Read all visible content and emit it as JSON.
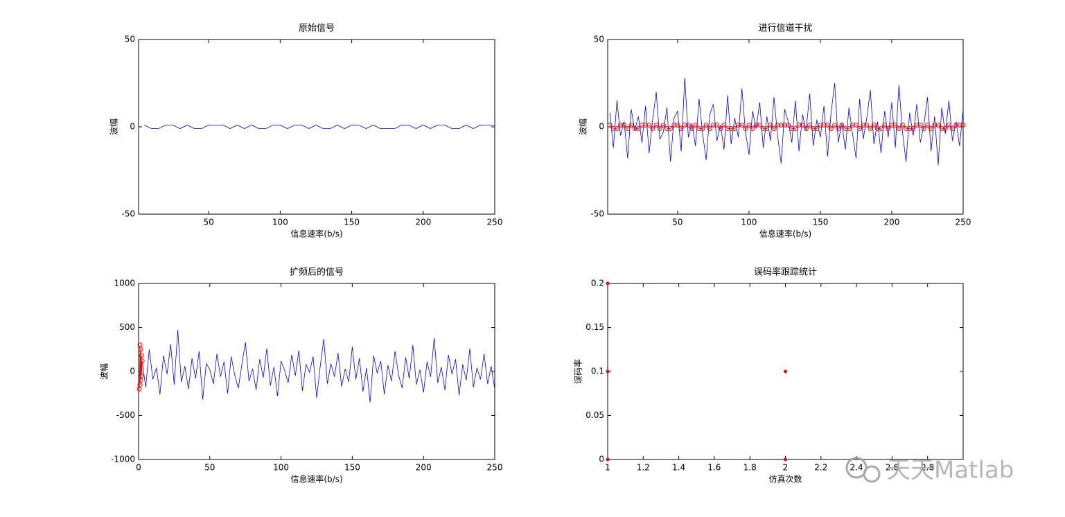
{
  "chart_data": [
    {
      "type": "line",
      "title": "原始信号",
      "xlabel": "信息速率(b/s)",
      "ylabel": "波幅",
      "xlim": [
        1,
        250
      ],
      "xticks": [
        50,
        100,
        150,
        200,
        250
      ],
      "ylim": [
        -50,
        50
      ],
      "yticks": [
        -50,
        0,
        50
      ],
      "x": [
        5,
        10,
        15,
        20,
        25,
        30,
        35,
        40,
        45,
        50,
        55,
        60,
        65,
        70,
        75,
        80,
        85,
        90,
        95,
        100,
        105,
        110,
        115,
        120,
        125,
        130,
        135,
        140,
        145,
        150,
        155,
        160,
        165,
        170,
        175,
        180,
        185,
        190,
        195,
        200,
        205,
        210,
        215,
        220,
        225,
        230,
        235,
        240,
        245,
        250
      ],
      "series": [
        {
          "color": "#0000ff",
          "values": [
            1,
            -1,
            -1,
            1,
            1,
            -1,
            1,
            -1,
            -1,
            1,
            1,
            1,
            -1,
            1,
            -1,
            1,
            -1,
            -1,
            1,
            1,
            -1,
            1,
            1,
            -1,
            1,
            -1,
            -1,
            1,
            -1,
            1,
            1,
            -1,
            1,
            -1,
            -1,
            -1,
            1,
            1,
            -1,
            1,
            -1,
            1,
            1,
            -1,
            -1,
            1,
            -1,
            1,
            1,
            1
          ]
        }
      ]
    },
    {
      "type": "line",
      "title": "进行信道干扰",
      "xlabel": "信息速率(b/s)",
      "ylabel": "波幅",
      "xlim": [
        1,
        250
      ],
      "xticks": [
        50,
        100,
        150,
        200,
        250
      ],
      "ylim": [
        -50,
        50
      ],
      "yticks": [
        -50,
        0,
        50
      ],
      "x": [
        2.5,
        5,
        7.5,
        10,
        12.5,
        15,
        17.5,
        20,
        22.5,
        25,
        27.5,
        30,
        32.5,
        35,
        37.5,
        40,
        42.5,
        45,
        47.5,
        50,
        52.5,
        55,
        57.5,
        60,
        62.5,
        65,
        67.5,
        70,
        72.5,
        75,
        77.5,
        80,
        82.5,
        85,
        87.5,
        90,
        92.5,
        95,
        97.5,
        100,
        102.5,
        105,
        107.5,
        110,
        112.5,
        115,
        117.5,
        120,
        122.5,
        125,
        127.5,
        130,
        132.5,
        135,
        137.5,
        140,
        142.5,
        145,
        147.5,
        150,
        152.5,
        155,
        157.5,
        160,
        162.5,
        165,
        167.5,
        170,
        172.5,
        175,
        177.5,
        180,
        182.5,
        185,
        187.5,
        190,
        192.5,
        195,
        197.5,
        200,
        202.5,
        205,
        207.5,
        210,
        212.5,
        215,
        217.5,
        220,
        222.5,
        225,
        227.5,
        230,
        232.5,
        235,
        237.5,
        240,
        242.5,
        245,
        247.5,
        250
      ],
      "series": [
        {
          "color": "#0000ff",
          "values": [
            8,
            -12,
            15,
            -5,
            3,
            -18,
            10,
            -2,
            6,
            -9,
            12,
            -15,
            4,
            20,
            -7,
            -3,
            11,
            -20,
            5,
            9,
            -14,
            28,
            -6,
            2,
            -11,
            16,
            -4,
            -19,
            7,
            13,
            -8,
            1,
            -13,
            18,
            -10,
            5,
            -6,
            22,
            -3,
            -16,
            9,
            -1,
            14,
            -12,
            6,
            -8,
            17,
            -5,
            -21,
            10,
            3,
            -9,
            15,
            -14,
            7,
            -2,
            19,
            -11,
            4,
            -6,
            12,
            -17,
            8,
            25,
            -9,
            2,
            -13,
            11,
            -4,
            -18,
            16,
            -7,
            5,
            21,
            -10,
            3,
            -15,
            9,
            -6,
            14,
            -12,
            24,
            -3,
            -20,
            8,
            -5,
            13,
            -9,
            1,
            17,
            -14,
            6,
            -22,
            11,
            -4,
            15,
            -8,
            3,
            -11,
            10
          ]
        },
        {
          "color": "#ff0000",
          "marker": "o",
          "values": [
            1,
            -1,
            -1,
            1,
            1,
            -1,
            1,
            -1,
            -1,
            1,
            1,
            1,
            -1,
            1,
            -1,
            1,
            -1,
            -1,
            1,
            1,
            -1,
            1,
            1,
            -1,
            1,
            -1,
            -1,
            1,
            -1,
            1,
            1,
            -1,
            1,
            -1,
            -1,
            -1,
            1,
            1,
            -1,
            1,
            -1,
            1,
            1,
            -1,
            -1,
            1,
            -1,
            1,
            1,
            1,
            1,
            -1,
            -1,
            1,
            1,
            -1,
            1,
            -1,
            -1,
            1,
            1,
            1,
            -1,
            1,
            -1,
            1,
            -1,
            -1,
            1,
            1,
            -1,
            1,
            1,
            -1,
            1,
            -1,
            -1,
            1,
            -1,
            1,
            1,
            -1,
            1,
            -1,
            -1,
            -1,
            1,
            1,
            -1,
            1,
            -1,
            1,
            1,
            -1,
            -1,
            1,
            -1,
            1,
            1,
            1
          ]
        }
      ]
    },
    {
      "type": "line",
      "title": "扩频后的信号",
      "xlabel": "信息速率(b/s)",
      "ylabel": "波幅",
      "xlim": [
        0,
        250
      ],
      "xticks": [
        0,
        50,
        100,
        150,
        200,
        250
      ],
      "ylim": [
        -1000,
        1000
      ],
      "yticks": [
        -1000,
        -500,
        0,
        500,
        1000
      ],
      "x": [
        2.5,
        5,
        7.5,
        10,
        12.5,
        15,
        17.5,
        20,
        22.5,
        25,
        27.5,
        30,
        32.5,
        35,
        37.5,
        40,
        42.5,
        45,
        47.5,
        50,
        52.5,
        55,
        57.5,
        60,
        62.5,
        65,
        67.5,
        70,
        72.5,
        75,
        77.5,
        80,
        82.5,
        85,
        87.5,
        90,
        92.5,
        95,
        97.5,
        100,
        102.5,
        105,
        107.5,
        110,
        112.5,
        115,
        117.5,
        120,
        122.5,
        125,
        127.5,
        130,
        132.5,
        135,
        137.5,
        140,
        142.5,
        145,
        147.5,
        150,
        152.5,
        155,
        157.5,
        160,
        162.5,
        165,
        167.5,
        170,
        172.5,
        175,
        177.5,
        180,
        182.5,
        185,
        187.5,
        190,
        192.5,
        195,
        197.5,
        200,
        202.5,
        205,
        207.5,
        210,
        212.5,
        215,
        217.5,
        220,
        222.5,
        225,
        227.5,
        230,
        232.5,
        235,
        237.5,
        240,
        242.5,
        245,
        247.5,
        250
      ],
      "series": [
        {
          "color": "#0000ff",
          "values": [
            120,
            -180,
            250,
            -90,
            40,
            -260,
            180,
            -30,
            310,
            -150,
            470,
            -120,
            60,
            -200,
            150,
            -80,
            230,
            -320,
            90,
            20,
            -140,
            200,
            -60,
            110,
            -250,
            170,
            -40,
            -190,
            80,
            330,
            -110,
            30,
            -210,
            140,
            -70,
            260,
            -160,
            50,
            -280,
            120,
            10,
            -130,
            190,
            -50,
            240,
            -220,
            80,
            -10,
            170,
            -300,
            60,
            370,
            -140,
            90,
            -60,
            210,
            -170,
            30,
            -120,
            280,
            -90,
            150,
            -230,
            40,
            -350,
            180,
            -20,
            120,
            -260,
            70,
            -110,
            230,
            -40,
            -190,
            160,
            -80,
            300,
            -150,
            20,
            -240,
            110,
            -60,
            380,
            -130,
            50,
            -210,
            190,
            -30,
            140,
            -270,
            80,
            -100,
            260,
            -180,
            40,
            -90,
            200,
            -140,
            60,
            -200
          ]
        },
        {
          "color": "#ff0000",
          "marker": "o",
          "x": [
            0.5,
            1,
            1,
            1.5,
            1.5,
            2,
            2,
            2.5
          ],
          "values": [
            -200,
            300,
            -150,
            250,
            -100,
            180,
            -50,
            120
          ]
        }
      ]
    },
    {
      "type": "scatter",
      "title": "误码率跟踪统计",
      "xlabel": "仿真次数",
      "ylabel": "误码率",
      "xlim": [
        1,
        3
      ],
      "xticks": [
        1,
        1.2,
        1.4,
        1.6,
        1.8,
        2,
        2.2,
        2.4,
        2.6,
        2.8
      ],
      "ylim": [
        0,
        0.2
      ],
      "yticks": [
        0,
        0.05,
        0.1,
        0.15,
        0.2
      ],
      "series": [
        {
          "color": "#ff0000",
          "marker": "o",
          "x": [
            1,
            1,
            1,
            2,
            2
          ],
          "values": [
            0.2,
            0.1,
            0,
            0.1,
            0
          ]
        }
      ]
    }
  ],
  "watermark": "天天Matlab"
}
